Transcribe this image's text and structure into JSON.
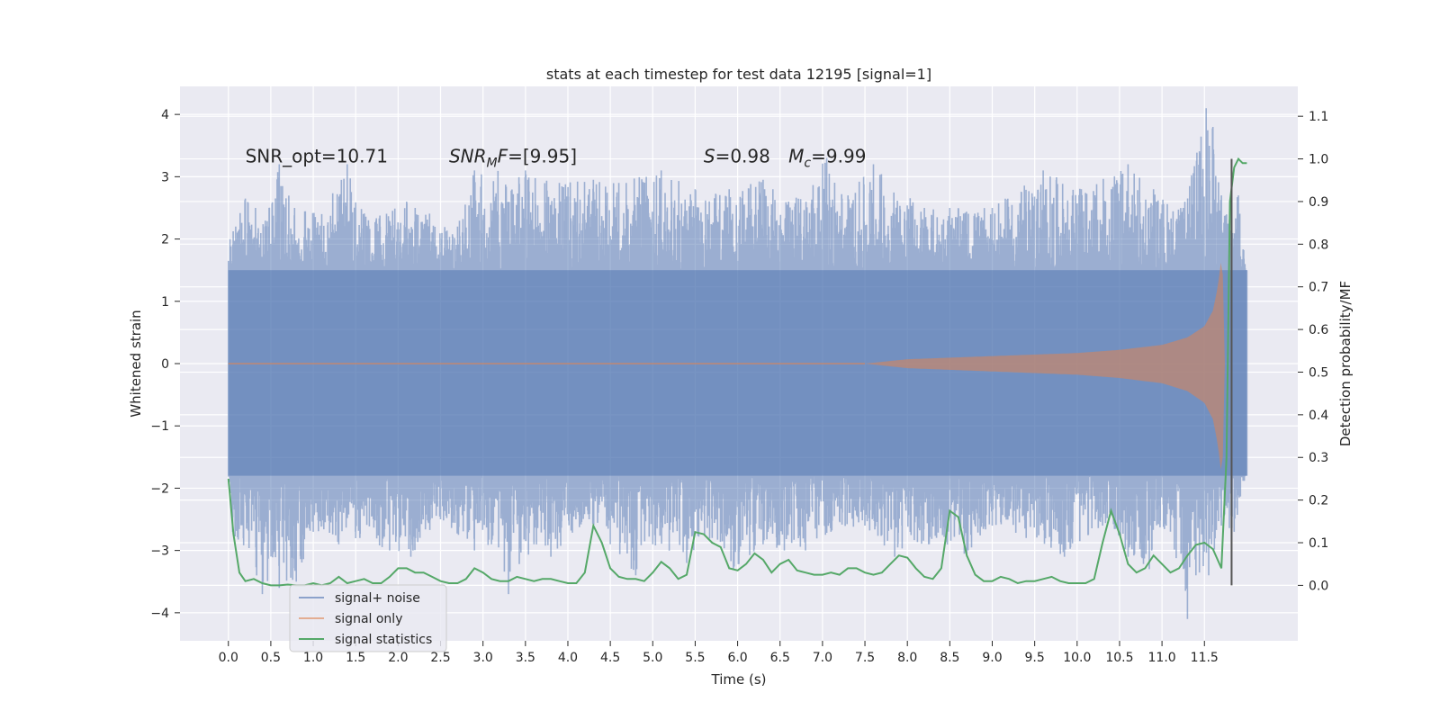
{
  "chart_data": {
    "type": "line",
    "title": "stats at each timestep for test data 12195 [signal=1]",
    "xlabel": "Time (s)",
    "ylabel": "Whitened strain",
    "y2label": "Detection probability/MF",
    "xlim": [
      -0.57,
      12.6
    ],
    "ylim": [
      -4.45,
      4.45
    ],
    "y2lim": [
      -0.13,
      1.17
    ],
    "x_ticks": [
      0.0,
      0.5,
      1.0,
      1.5,
      2.0,
      2.5,
      3.0,
      3.5,
      4.0,
      4.5,
      5.0,
      5.5,
      6.0,
      6.5,
      7.0,
      7.5,
      8.0,
      8.5,
      9.0,
      9.5,
      10.0,
      10.5,
      11.0,
      11.5
    ],
    "x_tick_labels": [
      "0.0",
      "0.5",
      "1.0",
      "1.5",
      "2.0",
      "2.5",
      "3.0",
      "3.5",
      "4.0",
      "4.5",
      "5.0",
      "5.5",
      "6.0",
      "6.5",
      "7.0",
      "7.5",
      "8.0",
      "8.5",
      "9.0",
      "9.5",
      "10.0",
      "10.5",
      "11.0",
      "11.5"
    ],
    "y_ticks": [
      -4,
      -3,
      -2,
      -1,
      0,
      1,
      2,
      3,
      4
    ],
    "y_tick_labels": [
      "−4",
      "−3",
      "−2",
      "−1",
      "0",
      "1",
      "2",
      "3",
      "4"
    ],
    "y2_ticks": [
      0.0,
      0.1,
      0.2,
      0.3,
      0.4,
      0.5,
      0.6,
      0.7,
      0.8,
      0.9,
      1.0,
      1.1
    ],
    "y2_tick_labels": [
      "0.0",
      "0.1",
      "0.2",
      "0.3",
      "0.4",
      "0.5",
      "0.6",
      "0.7",
      "0.8",
      "0.9",
      "1.0",
      "1.1"
    ],
    "grid": true,
    "legend_position": "lower-left",
    "annotations": [
      {
        "text": "SNR_opt=10.71",
        "x": 0.2,
        "y": 3.2
      },
      {
        "text": "SNR_MF=[9.95]",
        "x": 2.6,
        "y": 3.2
      },
      {
        "text": "S=0.98",
        "x": 5.6,
        "y": 3.2
      },
      {
        "text": "M_c=9.99",
        "x": 6.6,
        "y": 3.2
      }
    ],
    "vertical_line": {
      "x": 11.82,
      "y2_range": [
        0.0,
        1.0
      ],
      "color": "#555555"
    },
    "series": [
      {
        "name": "signal+ noise",
        "color": "#4c72b0",
        "axis": "left",
        "kind": "noise_band",
        "x_range": [
          0.0,
          12.0
        ],
        "envelope": [
          -1.8,
          1.5
        ],
        "peak_positive": [
          [
            0.02,
            2.0
          ],
          [
            0.2,
            2.65
          ],
          [
            0.32,
            2.5
          ],
          [
            0.48,
            2.5
          ],
          [
            0.6,
            3.2
          ],
          [
            0.78,
            2.5
          ],
          [
            1.1,
            2.4
          ],
          [
            1.4,
            3.2
          ],
          [
            1.65,
            2.3
          ],
          [
            2.1,
            2.6
          ],
          [
            2.7,
            2.2
          ],
          [
            2.9,
            3.1
          ],
          [
            3.5,
            3.1
          ],
          [
            3.9,
            2.9
          ],
          [
            4.3,
            2.95
          ],
          [
            4.6,
            2.9
          ],
          [
            5.1,
            3.1
          ],
          [
            5.5,
            2.8
          ],
          [
            5.9,
            2.8
          ],
          [
            6.3,
            2.95
          ],
          [
            6.6,
            2.6
          ],
          [
            7.05,
            3.3
          ],
          [
            7.3,
            2.7
          ],
          [
            7.6,
            3.2
          ],
          [
            8.2,
            2.5
          ],
          [
            8.5,
            2.5
          ],
          [
            9.0,
            2.5
          ],
          [
            9.6,
            3.1
          ],
          [
            10.05,
            2.8
          ],
          [
            10.6,
            3.2
          ],
          [
            10.9,
            2.8
          ],
          [
            11.25,
            2.5
          ],
          [
            11.52,
            4.1
          ],
          [
            11.6,
            3.8
          ],
          [
            11.7,
            2.7
          ],
          [
            11.9,
            2.7
          ],
          [
            12.0,
            1.4
          ]
        ],
        "peak_negative": [
          [
            0.02,
            -1.9
          ],
          [
            0.05,
            -2.7
          ],
          [
            0.4,
            -3.7
          ],
          [
            0.6,
            -3.6
          ],
          [
            0.8,
            -3.5
          ],
          [
            1.0,
            -2.7
          ],
          [
            1.3,
            -2.9
          ],
          [
            1.55,
            -2.8
          ],
          [
            1.9,
            -3.0
          ],
          [
            2.15,
            -3.1
          ],
          [
            2.5,
            -2.5
          ],
          [
            2.9,
            -3.0
          ],
          [
            3.1,
            -2.9
          ],
          [
            3.3,
            -3.7
          ],
          [
            3.6,
            -2.9
          ],
          [
            3.8,
            -3.1
          ],
          [
            4.25,
            -2.5
          ],
          [
            4.5,
            -2.9
          ],
          [
            4.8,
            -3.4
          ],
          [
            5.0,
            -2.9
          ],
          [
            5.4,
            -3.2
          ],
          [
            5.7,
            -2.8
          ],
          [
            5.95,
            -3.3
          ],
          [
            6.3,
            -2.9
          ],
          [
            6.55,
            -3.0
          ],
          [
            6.8,
            -3.0
          ],
          [
            7.1,
            -2.7
          ],
          [
            7.5,
            -2.6
          ],
          [
            7.85,
            -3.1
          ],
          [
            8.25,
            -2.9
          ],
          [
            8.7,
            -3.1
          ],
          [
            9.0,
            -2.6
          ],
          [
            9.4,
            -2.8
          ],
          [
            9.85,
            -3.1
          ],
          [
            10.3,
            -2.6
          ],
          [
            10.6,
            -3.1
          ],
          [
            10.85,
            -3.3
          ],
          [
            11.05,
            -2.6
          ],
          [
            11.3,
            -4.1
          ],
          [
            11.4,
            -3.4
          ],
          [
            11.55,
            -3.4
          ],
          [
            11.7,
            -2.6
          ],
          [
            11.85,
            -2.7
          ],
          [
            12.0,
            -1.7
          ]
        ]
      },
      {
        "name": "signal only",
        "color": "#dd8452",
        "axis": "left",
        "kind": "chirp",
        "amplitude": [
          [
            7.5,
            0.0
          ],
          [
            8.0,
            0.07
          ],
          [
            9.0,
            0.12
          ],
          [
            10.0,
            0.17
          ],
          [
            10.5,
            0.22
          ],
          [
            11.0,
            0.3
          ],
          [
            11.3,
            0.42
          ],
          [
            11.5,
            0.6
          ],
          [
            11.6,
            0.85
          ],
          [
            11.66,
            1.25
          ],
          [
            11.7,
            1.7
          ],
          [
            11.73,
            1.2
          ],
          [
            11.74,
            0.0
          ]
        ]
      },
      {
        "name": "signal statistics",
        "color": "#55a868",
        "axis": "right",
        "x": [
          0.0,
          0.06,
          0.13,
          0.2,
          0.3,
          0.4,
          0.5,
          0.6,
          0.7,
          0.8,
          0.9,
          1.0,
          1.1,
          1.2,
          1.3,
          1.4,
          1.5,
          1.6,
          1.7,
          1.8,
          1.9,
          2.0,
          2.1,
          2.2,
          2.3,
          2.4,
          2.5,
          2.6,
          2.7,
          2.8,
          2.9,
          3.0,
          3.1,
          3.2,
          3.3,
          3.4,
          3.5,
          3.6,
          3.7,
          3.8,
          3.9,
          4.0,
          4.1,
          4.2,
          4.3,
          4.4,
          4.5,
          4.6,
          4.7,
          4.8,
          4.9,
          5.0,
          5.1,
          5.2,
          5.3,
          5.4,
          5.5,
          5.6,
          5.7,
          5.8,
          5.9,
          6.0,
          6.1,
          6.2,
          6.3,
          6.4,
          6.5,
          6.6,
          6.7,
          6.8,
          6.9,
          7.0,
          7.1,
          7.2,
          7.3,
          7.4,
          7.5,
          7.6,
          7.7,
          7.8,
          7.9,
          8.0,
          8.1,
          8.2,
          8.3,
          8.4,
          8.5,
          8.6,
          8.7,
          8.8,
          8.9,
          9.0,
          9.1,
          9.2,
          9.3,
          9.4,
          9.5,
          9.6,
          9.7,
          9.8,
          9.9,
          10.0,
          10.1,
          10.2,
          10.3,
          10.4,
          10.5,
          10.6,
          10.7,
          10.8,
          10.9,
          11.0,
          11.1,
          11.2,
          11.3,
          11.4,
          11.5,
          11.6,
          11.7,
          11.76,
          11.8,
          11.85,
          11.9,
          11.95,
          12.0
        ],
        "values": [
          0.25,
          0.12,
          0.03,
          0.01,
          0.015,
          0.005,
          0.0,
          0.0,
          0.002,
          0.0,
          0.0,
          0.005,
          0.0,
          0.005,
          0.02,
          0.005,
          0.01,
          0.015,
          0.005,
          0.005,
          0.02,
          0.04,
          0.04,
          0.03,
          0.03,
          0.02,
          0.01,
          0.005,
          0.005,
          0.015,
          0.04,
          0.03,
          0.015,
          0.01,
          0.01,
          0.02,
          0.015,
          0.01,
          0.015,
          0.015,
          0.01,
          0.005,
          0.005,
          0.03,
          0.14,
          0.1,
          0.04,
          0.02,
          0.015,
          0.015,
          0.01,
          0.03,
          0.055,
          0.04,
          0.015,
          0.025,
          0.125,
          0.12,
          0.1,
          0.09,
          0.04,
          0.035,
          0.05,
          0.075,
          0.06,
          0.03,
          0.05,
          0.06,
          0.035,
          0.03,
          0.025,
          0.025,
          0.03,
          0.025,
          0.04,
          0.04,
          0.03,
          0.025,
          0.03,
          0.05,
          0.07,
          0.065,
          0.04,
          0.02,
          0.015,
          0.04,
          0.175,
          0.16,
          0.07,
          0.025,
          0.01,
          0.01,
          0.02,
          0.015,
          0.005,
          0.01,
          0.01,
          0.015,
          0.02,
          0.01,
          0.005,
          0.005,
          0.005,
          0.015,
          0.1,
          0.175,
          0.12,
          0.05,
          0.03,
          0.04,
          0.07,
          0.05,
          0.03,
          0.04,
          0.07,
          0.095,
          0.1,
          0.085,
          0.04,
          0.3,
          0.9,
          0.98,
          1.0,
          0.99,
          0.99
        ]
      }
    ]
  }
}
